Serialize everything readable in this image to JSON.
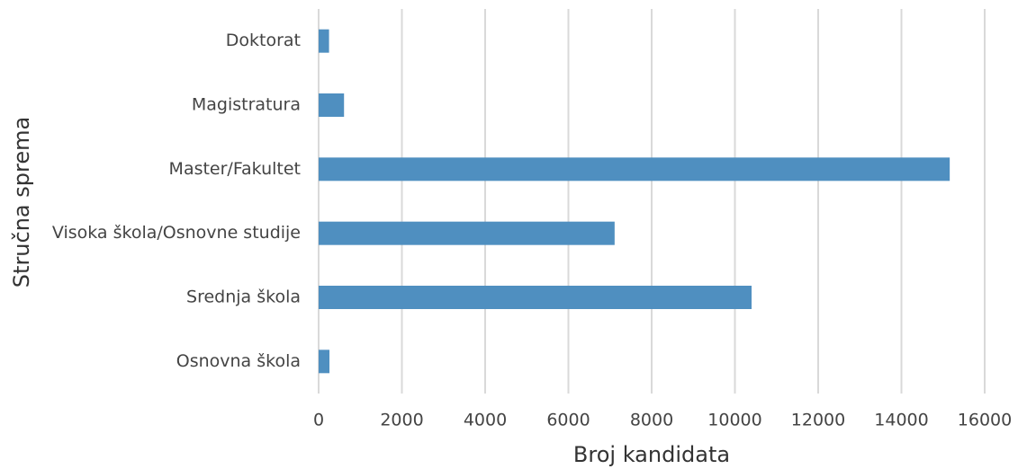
{
  "chart_data": {
    "type": "bar",
    "orientation": "horizontal",
    "xlabel": "Broj kandidata",
    "ylabel": "Stručna sprema",
    "categories": [
      "Doktorat",
      "Magistratura",
      "Master/Fakultet",
      "Visoka škola/Osnovne studije",
      "Srednja škola",
      "Osnovna škola"
    ],
    "values": [
      250,
      610,
      15160,
      7110,
      10400,
      260
    ],
    "color": "#4f8fc0",
    "xlim": [
      0,
      16000
    ],
    "xticks": [
      0,
      2000,
      4000,
      6000,
      8000,
      10000,
      12000,
      14000,
      16000
    ],
    "grid": true
  }
}
